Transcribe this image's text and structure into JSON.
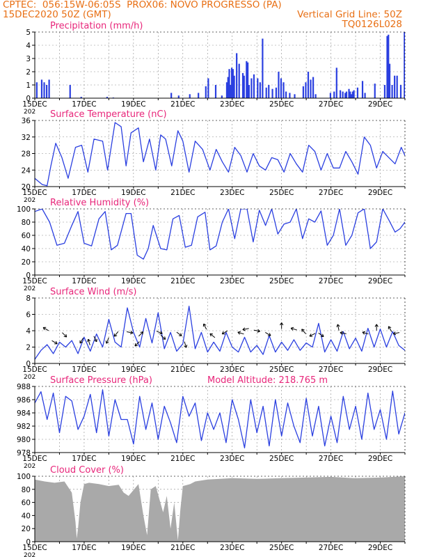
{
  "header": {
    "line1": "CPTEC:  056:15W-06:05S  PROX06: NOVO PROGRESSO (PA)",
    "line2_left": "15DEC2020 50Z (GMT)",
    "line2_right": "Vertical Grid Line: 50Z",
    "line3_right": "TQ0126L028"
  },
  "colors": {
    "header": "#e86f14",
    "title": "#e8267a",
    "line": "#2a3fe0",
    "bar": "#2a3fe0",
    "cloud": "#a9a9a9",
    "grid": "#8a8a8a"
  },
  "x_ticks": [
    "15DEC",
    "17DEC",
    "19DEC",
    "21DEC",
    "23DEC",
    "25DEC",
    "27DEC",
    "29DEC"
  ],
  "x_tick_days": [
    0,
    2,
    4,
    6,
    8,
    10,
    12,
    14
  ],
  "year_fragment": "202",
  "panel_annotation": "Model Altitude: 218.765 m",
  "chart_data": [
    {
      "type": "bar",
      "title": "Precipitation (mm/h)",
      "ylim": [
        0,
        5
      ],
      "yticks": [
        0,
        1,
        2,
        3,
        4,
        5
      ],
      "x": [
        0.05,
        0.25,
        0.35,
        0.45,
        0.55,
        1.4,
        1.85,
        2.9,
        3.15,
        5.5,
        5.8,
        6.25,
        6.6,
        6.9,
        7.0,
        7.3,
        7.55,
        7.75,
        7.8,
        7.85,
        7.9,
        7.95,
        8.0,
        8.05,
        8.15,
        8.25,
        8.4,
        8.45,
        8.55,
        8.6,
        8.65,
        8.75,
        8.85,
        9.0,
        9.1,
        9.2,
        9.35,
        9.45,
        9.6,
        9.75,
        9.85,
        9.95,
        10.05,
        10.15,
        10.3,
        10.5,
        10.85,
        10.95,
        11.05,
        11.15,
        11.25,
        11.35,
        11.95,
        12.1,
        12.2,
        12.35,
        12.45,
        12.55,
        12.6,
        12.7,
        12.75,
        12.8,
        12.85,
        12.9,
        13.05,
        13.25,
        13.35,
        13.75,
        14.15,
        14.25,
        14.3,
        14.35,
        14.45,
        14.55,
        14.65,
        14.8,
        14.95
      ],
      "values": [
        1.2,
        1.4,
        1.2,
        1.0,
        1.4,
        1.0,
        0.1,
        0.1,
        0.05,
        0.4,
        0.2,
        0.3,
        0.4,
        0.9,
        1.5,
        1.0,
        0.2,
        1.2,
        1.6,
        2.2,
        1.0,
        2.3,
        2.2,
        1.7,
        3.4,
        2.6,
        1.9,
        1.7,
        2.8,
        2.7,
        1.0,
        1.5,
        1.8,
        1.5,
        1.2,
        4.5,
        0.8,
        1.0,
        0.7,
        0.8,
        2.0,
        1.5,
        1.2,
        0.5,
        0.4,
        0.3,
        0.9,
        1.2,
        2.0,
        1.4,
        1.6,
        0.3,
        0.4,
        0.5,
        2.3,
        0.6,
        0.5,
        0.4,
        0.5,
        0.7,
        0.5,
        0.3,
        0.5,
        0.6,
        0.8,
        1.3,
        0.4,
        1.1,
        1.0,
        4.7,
        4.8,
        2.6,
        1.0,
        1.7,
        1.7,
        1.0,
        5.0
      ]
    },
    {
      "type": "line",
      "title": "Surface Temperature (nC)",
      "ylim": [
        20,
        36
      ],
      "yticks": [
        20,
        24,
        28,
        32,
        36
      ],
      "x": [
        0,
        0.3,
        0.5,
        0.65,
        0.85,
        1.1,
        1.35,
        1.65,
        1.9,
        2.15,
        2.4,
        2.75,
        2.95,
        3.25,
        3.5,
        3.7,
        3.9,
        4.2,
        4.4,
        4.65,
        4.9,
        5.1,
        5.3,
        5.55,
        5.8,
        6.0,
        6.25,
        6.5,
        6.8,
        7.1,
        7.35,
        7.6,
        7.85,
        8.1,
        8.35,
        8.6,
        8.85,
        9.1,
        9.35,
        9.6,
        9.85,
        10.1,
        10.35,
        10.6,
        10.85,
        11.1,
        11.35,
        11.6,
        11.85,
        12.1,
        12.35,
        12.6,
        12.85,
        13.1,
        13.35,
        13.6,
        13.85,
        14.1,
        14.35,
        14.6,
        14.85,
        15.0
      ],
      "values": [
        22,
        20.5,
        20.2,
        25,
        30.5,
        27,
        22,
        29.5,
        30,
        23.5,
        31.5,
        31,
        24,
        35.5,
        34.5,
        25,
        33,
        34.2,
        26,
        31.5,
        24,
        32.5,
        31.5,
        25,
        33.5,
        31,
        23.5,
        31,
        29,
        24,
        29,
        26,
        23.5,
        29.5,
        27.5,
        23.5,
        28,
        25,
        24,
        27,
        26.5,
        23.5,
        28,
        25.5,
        23.5,
        30,
        28.5,
        24,
        28,
        24.5,
        24.5,
        28.5,
        26,
        23,
        32,
        30,
        24.5,
        28.5,
        27,
        25.5,
        29.5,
        27.5
      ]
    },
    {
      "type": "line",
      "title": "Relative Humidity (%)",
      "ylim": [
        0,
        100
      ],
      "yticks": [
        0,
        20,
        40,
        60,
        80,
        100
      ],
      "x": [
        0,
        0.3,
        0.6,
        0.9,
        1.2,
        1.5,
        1.75,
        2.0,
        2.3,
        2.6,
        2.85,
        3.1,
        3.35,
        3.7,
        3.9,
        4.15,
        4.4,
        4.6,
        4.8,
        5.1,
        5.35,
        5.6,
        5.85,
        6.1,
        6.35,
        6.6,
        6.9,
        7.1,
        7.35,
        7.6,
        7.85,
        8.1,
        8.35,
        8.6,
        8.85,
        9.1,
        9.35,
        9.6,
        9.85,
        10.1,
        10.35,
        10.6,
        10.85,
        11.1,
        11.35,
        11.6,
        11.85,
        12.1,
        12.35,
        12.6,
        12.85,
        13.1,
        13.35,
        13.6,
        13.85,
        14.1,
        14.35,
        14.6,
        14.8,
        15.0
      ],
      "values": [
        96,
        100,
        80,
        45,
        48,
        75,
        96,
        48,
        44,
        85,
        96,
        38,
        45,
        93,
        93,
        30,
        24,
        40,
        75,
        40,
        38,
        85,
        90,
        42,
        45,
        88,
        95,
        38,
        44,
        80,
        100,
        55,
        100,
        100,
        50,
        98,
        75,
        100,
        62,
        77,
        80,
        100,
        55,
        85,
        80,
        97,
        45,
        60,
        100,
        45,
        60,
        94,
        100,
        40,
        50,
        100,
        83,
        65,
        70,
        80
      ]
    },
    {
      "type": "line",
      "title": "Surface Wind (m/s)",
      "ylim": [
        0,
        8
      ],
      "yticks": [
        0,
        2,
        4,
        6,
        8
      ],
      "x": [
        0,
        0.25,
        0.5,
        0.75,
        1.0,
        1.25,
        1.5,
        1.75,
        2.0,
        2.25,
        2.5,
        2.75,
        3.0,
        3.25,
        3.5,
        3.75,
        4.0,
        4.25,
        4.5,
        4.75,
        5.0,
        5.25,
        5.5,
        5.75,
        6.0,
        6.25,
        6.5,
        6.75,
        7.0,
        7.25,
        7.5,
        7.75,
        8.0,
        8.25,
        8.5,
        8.75,
        9.0,
        9.25,
        9.5,
        9.75,
        10.0,
        10.25,
        10.5,
        10.75,
        11.0,
        11.25,
        11.5,
        11.75,
        12.0,
        12.25,
        12.5,
        12.75,
        13.0,
        13.25,
        13.5,
        13.75,
        14.0,
        14.25,
        14.5,
        14.75,
        15.0
      ],
      "values": [
        0.5,
        1.6,
        2.3,
        1.2,
        2.6,
        2.0,
        2.8,
        1.2,
        3.2,
        1.5,
        3.6,
        2.0,
        5.4,
        2.6,
        2.0,
        6.8,
        3.8,
        2.0,
        5.5,
        2.5,
        6.2,
        1.8,
        3.8,
        1.5,
        2.4,
        7.0,
        1.8,
        3.8,
        1.4,
        2.6,
        1.5,
        3.8,
        2.0,
        1.4,
        3.2,
        1.4,
        2.2,
        1.1,
        3.4,
        1.4,
        2.6,
        1.6,
        2.9,
        1.6,
        2.5,
        2.0,
        4.9,
        1.4,
        2.9,
        1.5,
        3.9,
        1.8,
        3.1,
        1.5,
        4.3,
        2.0,
        4.2,
        2.0,
        3.9,
        2.2,
        1.6
      ]
    },
    {
      "type": "line",
      "title": "Surface Pressure (hPa)",
      "ylim": [
        978,
        988
      ],
      "yticks": [
        978,
        980,
        982,
        984,
        986,
        988
      ],
      "x": [
        0,
        0.25,
        0.5,
        0.75,
        1.0,
        1.25,
        1.5,
        1.75,
        2.0,
        2.25,
        2.5,
        2.75,
        3.0,
        3.25,
        3.5,
        3.75,
        4.0,
        4.25,
        4.5,
        4.75,
        5.0,
        5.25,
        5.5,
        5.75,
        6.0,
        6.25,
        6.5,
        6.75,
        7.0,
        7.25,
        7.5,
        7.75,
        8.0,
        8.25,
        8.5,
        8.75,
        9.0,
        9.25,
        9.5,
        9.75,
        10.0,
        10.25,
        10.5,
        10.75,
        11.0,
        11.25,
        11.5,
        11.75,
        12.0,
        12.25,
        12.5,
        12.75,
        13.0,
        13.25,
        13.5,
        13.75,
        14.0,
        14.25,
        14.5,
        14.75,
        15.0
      ],
      "values": [
        985.5,
        987.2,
        983.0,
        987.0,
        981.0,
        986.5,
        985.8,
        981.5,
        983.5,
        986.8,
        981.0,
        987.5,
        980.5,
        986.0,
        983.0,
        983.0,
        979.3,
        986.5,
        981.5,
        985.5,
        980.0,
        985.0,
        982.5,
        979.5,
        986.5,
        983.5,
        985.5,
        979.8,
        984.0,
        981.5,
        984.0,
        979.5,
        986.0,
        983.0,
        978.7,
        986.0,
        981.0,
        985.0,
        979.0,
        986.0,
        980.5,
        985.5,
        982.0,
        979.5,
        986.2,
        980.5,
        985.0,
        979.0,
        983.5,
        979.5,
        986.5,
        981.5,
        985.0,
        980.0,
        987.0,
        981.5,
        984.5,
        980.0,
        987.3,
        980.8,
        984.0
      ]
    },
    {
      "type": "area",
      "title": "Cloud Cover (%)",
      "ylim": [
        0,
        100
      ],
      "yticks": [
        0,
        20,
        40,
        60,
        80,
        100
      ],
      "x": [
        0,
        0.4,
        0.8,
        1.2,
        1.5,
        1.65,
        1.7,
        1.75,
        1.85,
        2.0,
        2.2,
        2.6,
        3.0,
        3.4,
        3.6,
        3.8,
        4.2,
        4.4,
        4.55,
        4.7,
        4.9,
        5.2,
        5.35,
        5.5,
        5.65,
        5.8,
        5.9,
        6.0,
        6.3,
        6.5,
        7.0,
        8.0,
        9.0,
        10.0,
        11.0,
        12.0,
        13.0,
        14.0,
        15.0
      ],
      "values": [
        95,
        92,
        90,
        92,
        75,
        30,
        5,
        20,
        60,
        88,
        90,
        88,
        85,
        87,
        75,
        70,
        88,
        40,
        10,
        80,
        85,
        45,
        70,
        20,
        60,
        2,
        50,
        85,
        88,
        92,
        95,
        97,
        96,
        97,
        98,
        99,
        97,
        98,
        100
      ]
    }
  ]
}
